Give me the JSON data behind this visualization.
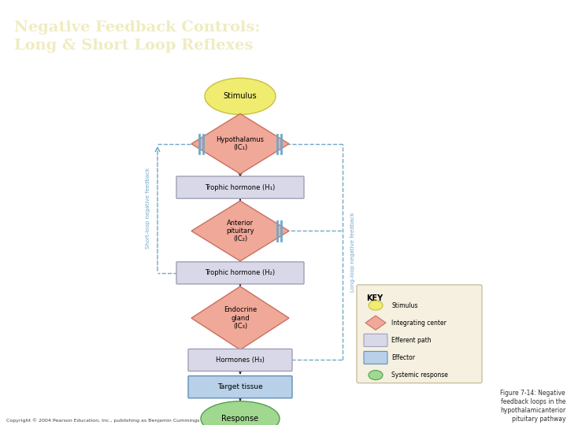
{
  "title": "Negative Feedback Controls:\nLong & Short Loop Reflexes",
  "title_bg": "#3d7a74",
  "title_color": "#f0ecc0",
  "copyright": "Copyright © 2004 Pearson Education, Inc., publishing as Benjamin Cummings",
  "figure_caption": "Figure 7-14: Negative\nfeedback loops in the\nhypothalamicanterior\npituitary pathway",
  "bg_color": "#ffffff",
  "node_color_diamond": "#f0a898",
  "node_ec_diamond": "#c87060",
  "node_color_rect": "#d8d8e8",
  "node_ec_rect": "#a0a0b8",
  "node_color_rect_blue": "#b8d0e8",
  "node_ec_rect_blue": "#6090b8",
  "node_color_stim": "#f0ec70",
  "node_ec_stim": "#c8c040",
  "node_color_resp": "#a0d890",
  "node_ec_resp": "#50a050",
  "feedback_color": "#70a8c8",
  "key_bg": "#f5f0e0",
  "key_ec": "#c8c0a0"
}
